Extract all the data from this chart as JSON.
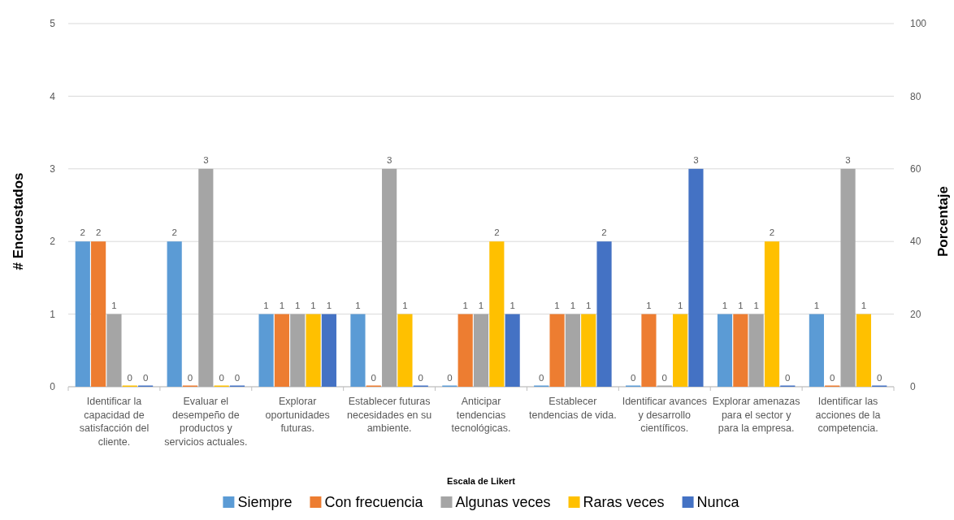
{
  "chart_data": {
    "type": "bar",
    "xlabel": "Escala de Likert",
    "ylabel": "# Encuestados",
    "y2label": "Porcentaje",
    "categories": [
      "Identificar la capacidad de satisfacción del cliente.",
      "Evaluar el desempeño de productos y servicios actuales.",
      "Explorar oportunidades futuras.",
      "Establecer futuras necesidades en su ambiente.",
      "Anticipar tendencias tecnológicas.",
      "Establecer tendencias de vida.",
      "Identificar avances y desarrollo científicos.",
      "Explorar amenazas para el sector y para la empresa.",
      "Identificar las acciones de la competencia."
    ],
    "series": [
      {
        "name": "Siempre",
        "color": "#5b9bd5",
        "values": [
          2,
          2,
          1,
          1,
          0,
          0,
          0,
          1,
          1
        ]
      },
      {
        "name": "Con frecuencia",
        "color": "#ed7d31",
        "values": [
          2,
          0,
          1,
          0,
          1,
          1,
          1,
          1,
          0
        ]
      },
      {
        "name": "Algunas veces",
        "color": "#a5a5a5",
        "values": [
          1,
          3,
          1,
          3,
          1,
          1,
          0,
          1,
          3
        ]
      },
      {
        "name": "Raras veces",
        "color": "#ffc000",
        "values": [
          0,
          0,
          1,
          1,
          2,
          1,
          1,
          2,
          1
        ]
      },
      {
        "name": "Nunca",
        "color": "#4472c4",
        "values": [
          0,
          0,
          1,
          0,
          1,
          2,
          3,
          0,
          0
        ]
      }
    ],
    "ylim": [
      0,
      5
    ],
    "yticks": [
      0,
      1,
      2,
      3,
      4,
      5
    ],
    "y2lim": [
      0,
      100
    ],
    "y2ticks": [
      0,
      20,
      40,
      60,
      80,
      100
    ],
    "grid": "y",
    "legend": "bottom",
    "data_labels": true
  }
}
